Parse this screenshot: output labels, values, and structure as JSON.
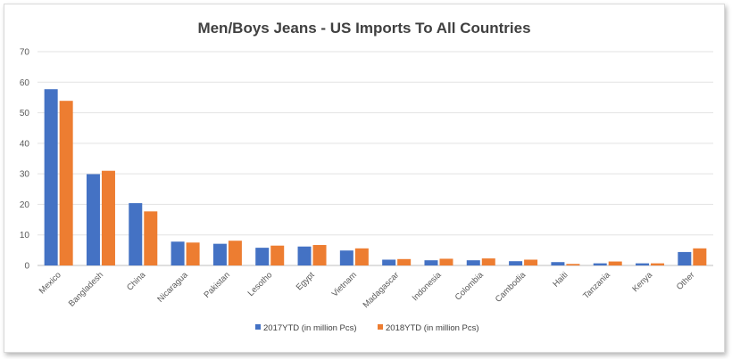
{
  "chart_data": {
    "type": "bar",
    "title": "Men/Boys Jeans - US Imports To All Countries",
    "xlabel": "",
    "ylabel": "",
    "ylim": [
      0,
      70
    ],
    "yticks": [
      0,
      10,
      20,
      30,
      40,
      50,
      60,
      70
    ],
    "grid": true,
    "legend_position": "bottom",
    "categories": [
      "Mexico",
      "Bangladesh",
      "China",
      "Nicaragua",
      "Pakistan",
      "Lesotho",
      "Egypt",
      "Vietnam",
      "Madagascar",
      "Indonesia",
      "Colombia",
      "Cambodia",
      "Haiti",
      "Tanzania",
      "Kenya",
      "Other"
    ],
    "series": [
      {
        "name": "2017YTD (in million Pcs)",
        "color": "#4472c4",
        "values": [
          57.7,
          29.9,
          20.4,
          7.8,
          7.1,
          5.8,
          6.2,
          4.9,
          1.9,
          1.7,
          1.7,
          1.4,
          1.1,
          0.7,
          0.7,
          4.4
        ]
      },
      {
        "name": "2018YTD (in million Pcs)",
        "color": "#ed7d31",
        "values": [
          53.9,
          31.0,
          17.7,
          7.5,
          8.1,
          6.5,
          6.7,
          5.6,
          2.1,
          2.2,
          2.3,
          1.9,
          0.5,
          1.3,
          0.7,
          5.6
        ]
      }
    ]
  }
}
